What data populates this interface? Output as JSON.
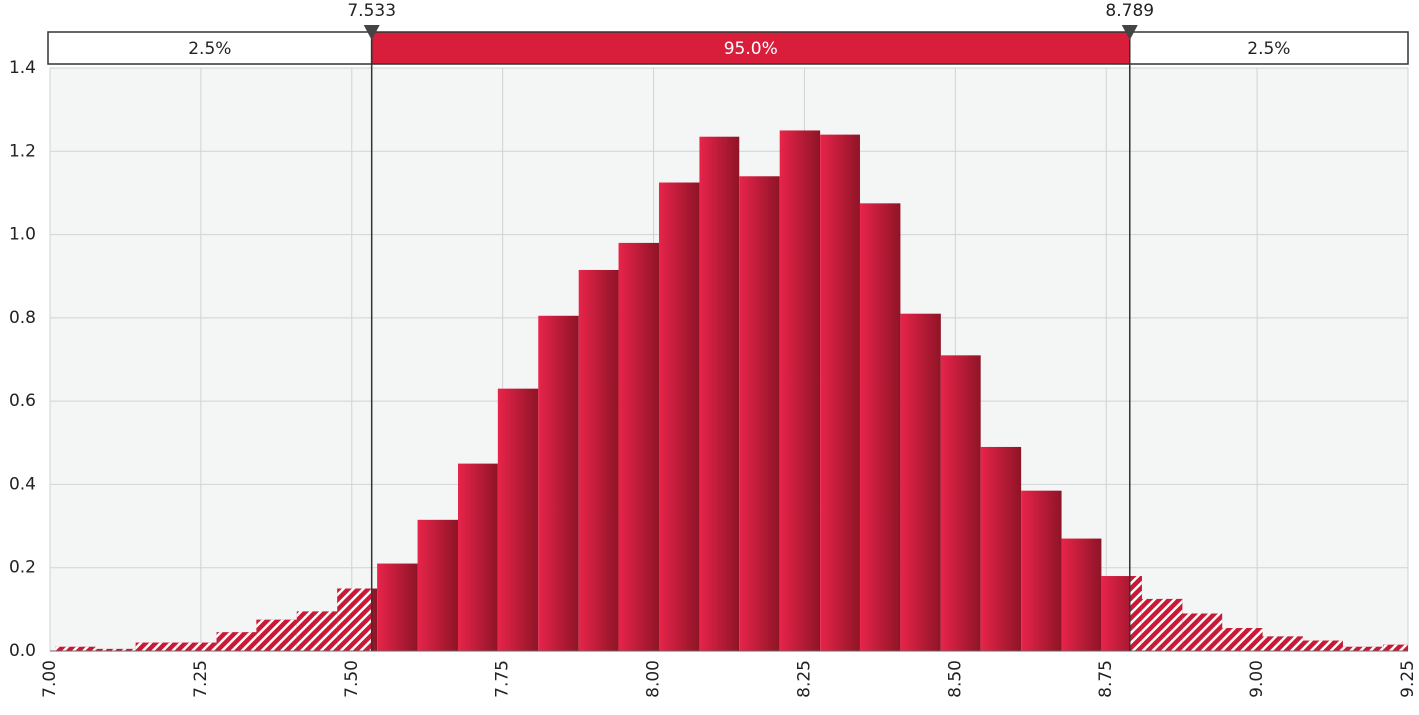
{
  "chart_data": {
    "type": "histogram",
    "bins": [
      7.009,
      7.076,
      7.142,
      7.209,
      7.276,
      7.342,
      7.409,
      7.476,
      7.542,
      7.609,
      7.676,
      7.742,
      7.809,
      7.876,
      7.942,
      8.009,
      8.076,
      8.142,
      8.209,
      8.276,
      8.342,
      8.409,
      8.476,
      8.542,
      8.609,
      8.676,
      8.742,
      8.809,
      8.876,
      8.942,
      9.009,
      9.076,
      9.142,
      9.209,
      9.276
    ],
    "values": [
      0.01,
      0.005,
      0.02,
      0.02,
      0.045,
      0.075,
      0.095,
      0.15,
      0.21,
      0.315,
      0.45,
      0.63,
      0.805,
      0.915,
      0.98,
      1.125,
      1.235,
      1.14,
      1.25,
      1.24,
      1.075,
      0.81,
      0.71,
      0.49,
      0.385,
      0.27,
      0.18,
      0.125,
      0.09,
      0.055,
      0.035,
      0.025,
      0.01,
      0.015
    ],
    "color": "#d91e3c",
    "xlim": [
      7,
      9.25
    ],
    "xticks": [
      {
        "value": 7,
        "label": "7.00"
      },
      {
        "value": 7.25,
        "label": "7.25"
      },
      {
        "value": 7.5,
        "label": "7.50"
      },
      {
        "value": 7.75,
        "label": "7.75"
      },
      {
        "value": 8,
        "label": "8.00"
      },
      {
        "value": 8.25,
        "label": "8.25"
      },
      {
        "value": 8.5,
        "label": "8.50"
      },
      {
        "value": 8.75,
        "label": "8.75"
      },
      {
        "value": 9,
        "label": "9.00"
      },
      {
        "value": 9.25,
        "label": "9.25"
      }
    ],
    "ylim": [
      0,
      1.4
    ],
    "yticks": [
      {
        "value": 0,
        "label": "0.0"
      },
      0.2,
      0.4,
      0.6,
      0.8,
      {
        "value": 1,
        "label": "1.0"
      },
      1.2,
      1.4
    ],
    "grid": true,
    "delimiters": [
      7.533,
      8.789
    ],
    "bands": {
      "values": [
        2.5,
        95,
        2.5
      ],
      "value_labels": [
        "2.5%",
        "95.0%",
        "2.5%"
      ]
    }
  }
}
